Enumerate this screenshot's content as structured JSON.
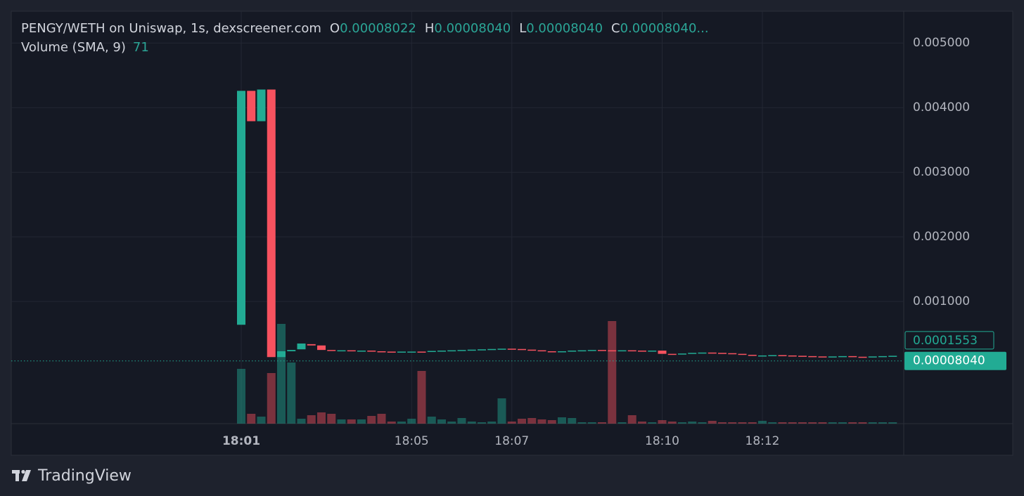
{
  "chart_data": {
    "type": "candlestick",
    "title": "PENGY/WETH on Uniswap, 1s, dexscreener.com",
    "ohlc": [
      {
        "key": "O",
        "label": "0.00008022"
      },
      {
        "key": "H",
        "label": "0.00008040"
      },
      {
        "key": "L",
        "label": "0.00008040"
      },
      {
        "key": "C",
        "label": "0.00008040..."
      }
    ],
    "volume_label": "Volume (SMA, 9)",
    "volume_sma_label": "71",
    "categories": [
      "18:01",
      null,
      null,
      null,
      null,
      null,
      null,
      null,
      null,
      null,
      null,
      null,
      null,
      null,
      null,
      null,
      null,
      "18:05",
      null,
      null,
      null,
      null,
      null,
      null,
      null,
      null,
      null,
      "18:07",
      null,
      null,
      null,
      null,
      null,
      null,
      null,
      null,
      null,
      null,
      null,
      null,
      null,
      null,
      "18:10",
      null,
      null,
      null,
      null,
      null,
      null,
      null,
      null,
      null,
      "18:12",
      null,
      null,
      null,
      null,
      null,
      null,
      null,
      null,
      null,
      null,
      null,
      null,
      null
    ],
    "open": [
      0.00064,
      0.00426,
      0.00379,
      0.00428,
      0.00014,
      0.00023,
      0.00026,
      0.00034,
      0.00032,
      0.00025,
      0.00024,
      0.000245,
      0.000235,
      0.00024,
      0.00023,
      0.000225,
      0.00022,
      0.00022,
      0.000225,
      0.00022,
      0.000235,
      0.00024,
      0.000245,
      0.00025,
      0.000255,
      0.00026,
      0.000265,
      0.00027,
      0.000265,
      0.000255,
      0.000245,
      0.00023,
      0.00022,
      0.00023,
      0.00024,
      0.000245,
      0.00025,
      0.000245,
      0.00024,
      0.000245,
      0.00024,
      0.000235,
      0.00024,
      0.00019,
      0.000185,
      0.000195,
      0.000205,
      0.00021,
      0.000205,
      0.0002,
      0.00019,
      0.000175,
      0.00016,
      0.000165,
      0.00017,
      0.000165,
      0.00016,
      0.000155,
      0.00015,
      0.000145,
      0.00015,
      0.000155,
      0.000145,
      0.00014,
      0.00015,
      0.000155
    ],
    "close": [
      0.00426,
      0.00379,
      0.00428,
      0.00014,
      0.00023,
      0.00025,
      0.00035,
      0.00032,
      0.00025,
      0.00024,
      0.000245,
      0.000235,
      0.00024,
      0.00023,
      0.000225,
      0.00022,
      0.000225,
      0.000225,
      0.00022,
      0.000235,
      0.00024,
      0.000245,
      0.00025,
      0.000255,
      0.00026,
      0.000265,
      0.00027,
      0.000265,
      0.000255,
      0.000245,
      0.00023,
      0.00022,
      0.00023,
      0.00024,
      0.000245,
      0.00025,
      0.000245,
      0.00024,
      0.000245,
      0.00024,
      0.000235,
      0.00024,
      0.00019,
      0.000185,
      0.000195,
      0.000205,
      0.00021,
      0.000205,
      0.0002,
      0.00019,
      0.000175,
      0.00016,
      0.000165,
      0.00017,
      0.000165,
      0.00016,
      0.000155,
      0.00015,
      0.000145,
      0.00015,
      0.000155,
      0.000145,
      0.00014,
      0.00015,
      0.000155,
      0.00016
    ],
    "volume": [
      78,
      14,
      10,
      72,
      142,
      87,
      7,
      12,
      16,
      14,
      6,
      6,
      6,
      11,
      14,
      3,
      3,
      7,
      75,
      10,
      6,
      3,
      8,
      3,
      2,
      3,
      36,
      3,
      7,
      8,
      6,
      5,
      9,
      8,
      2,
      2,
      2,
      146,
      2,
      12,
      3,
      2,
      5,
      3,
      2,
      3,
      2,
      4,
      2,
      2,
      2,
      2,
      4,
      2,
      2,
      2,
      2,
      2,
      2,
      2,
      2,
      2,
      2,
      2,
      2,
      2
    ],
    "up_color": "#22ab94",
    "down_color": "#f7525f",
    "ylim": [
      -0.00089,
      0.00547
    ],
    "volume_lim": [
      0,
      150
    ],
    "yticks": [
      {
        "value": 0.001,
        "label": "0.001000"
      },
      {
        "value": 0.002,
        "label": "0.002000"
      },
      {
        "value": 0.003,
        "label": "0.003000"
      },
      {
        "value": 0.004,
        "label": "0.004000"
      },
      {
        "value": 0.005,
        "label": "0.005000"
      }
    ],
    "sma_price": {
      "value": 0.0001553,
      "label": "0.0001553"
    },
    "last_price": {
      "value": 8.04e-05,
      "label": "0.00008040"
    },
    "grid": true,
    "watermark": "TradingView"
  }
}
